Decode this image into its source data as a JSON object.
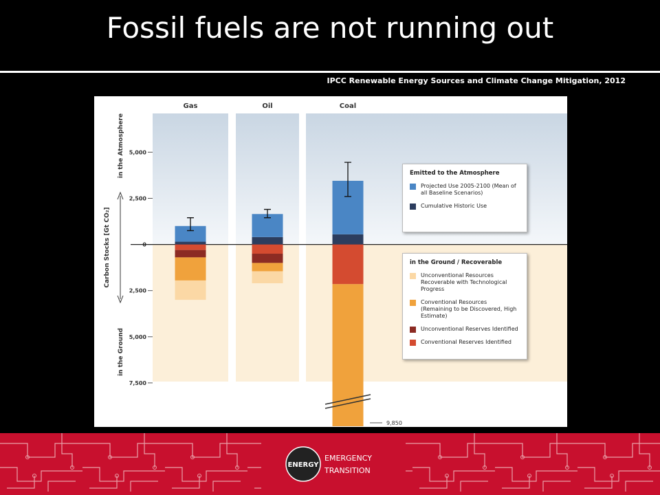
{
  "slide": {
    "title": "Fossil fuels are not running out",
    "source": "IPCC Renewable Energy Sources and Climate Change Mitigation, 2012",
    "logo": {
      "circle": "ENERGY",
      "line1": "EMERGENCY",
      "line2": "TRANSITION"
    }
  },
  "chart_data": {
    "type": "stacked_bar",
    "categories": [
      "Gas",
      "Oil",
      "Coal"
    ],
    "series": [
      {
        "name": "Cumulative Historic Use",
        "color": "#2c3d5e",
        "values": [
          150,
          400,
          550
        ]
      },
      {
        "name": "Projected Use 2005-2100 (Mean of all Baseline Scenarios)",
        "color": "#4a86c5",
        "values": [
          850,
          1250,
          2900
        ]
      },
      {
        "name": "Conventional Reserves Identified",
        "color": "#d44b30",
        "values": [
          -300,
          -500,
          -2150
        ]
      },
      {
        "name": "Unconventional Reserves Identified",
        "color": "#8c2b23",
        "values": [
          -400,
          -500,
          0
        ]
      },
      {
        "name": "Conventional Resources (Remaining to be Discovered, High Estimate)",
        "color": "#f0a23c",
        "values": [
          -1250,
          -450,
          -7700
        ]
      },
      {
        "name": "Unconventional Resources Recoverable with Technological Progress",
        "color": "#fbd8a5",
        "values": [
          -1050,
          -650,
          0
        ]
      }
    ],
    "error_bars": {
      "low": [
        750,
        1450,
        2600
      ],
      "high": [
        1450,
        1900,
        4450
      ]
    },
    "legend_titles": [
      "Emitted to the Atmosphere",
      "in the Ground / Recoverable"
    ],
    "ylabel": "Carbon Stocks [Gt CO₂]",
    "ylabel_top": "in the Atmosphere",
    "ylabel_bottom": "in the Ground",
    "ylim": [
      -9850,
      7100
    ],
    "yticks": [
      {
        "value": 5000,
        "label": "5,000"
      },
      {
        "value": 2500,
        "label": "2,500"
      },
      0,
      {
        "value": -2500,
        "label": "2,500"
      },
      {
        "value": -5000,
        "label": "5,000"
      },
      {
        "value": -7500,
        "label": "7,500"
      }
    ],
    "annotation": {
      "value": -9850,
      "label": "9,850"
    }
  }
}
